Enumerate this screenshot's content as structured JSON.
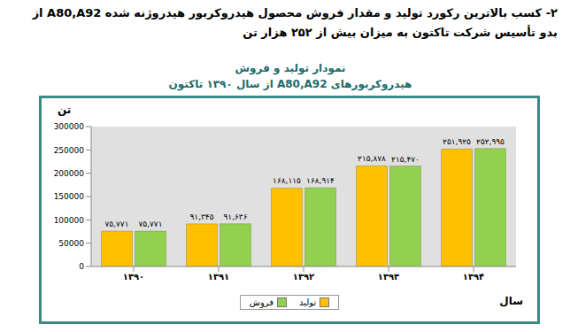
{
  "heading": "۲- کسب بالاترین رکورد تولید و مقدار فروش محصول هیدروکربور هیدروژنه شده A80,A92 از بدو تأسیس شرکت تاکتون به میزان بیش از ۲۵۲ هزار تن",
  "chart_data": {
    "type": "bar",
    "title": "نمودار تولید و فروش",
    "subtitle": "هیدروکربورهای A80,A92 از سال ۱۳۹۰ تاکتون",
    "y_label": "تن",
    "x_label": "سال",
    "categories": [
      "۱۳۹۰",
      "۱۳۹۱",
      "۱۳۹۲",
      "۱۳۹۳",
      "۱۳۹۴"
    ],
    "series": [
      {
        "name": "تولید",
        "color": "#ffc000",
        "values": [
          75771,
          91345,
          168115,
          215878,
          251925
        ],
        "value_labels": [
          "۷۵,۷۷۱",
          "۹۱,۳۴۵",
          "۱۶۸,۱۱۵",
          "۲۱۵,۸۷۸",
          "۲۵۱,۹۲۵"
        ]
      },
      {
        "name": "فروش",
        "color": "#92d050",
        "values": [
          75771,
          91636,
          168914,
          215470,
          252995
        ],
        "value_labels": [
          "۷۵,۷۷۱",
          "۹۱,۶۳۶",
          "۱۶۸,۹۱۴",
          "۲۱۵,۴۷۰",
          "۲۵۲,۹۹۵"
        ]
      }
    ],
    "ylim": [
      0,
      300000
    ],
    "yticks": [
      0,
      50000,
      100000,
      150000,
      200000,
      250000,
      300000
    ],
    "grid": false,
    "legend": "bottom",
    "data_labels": true
  }
}
